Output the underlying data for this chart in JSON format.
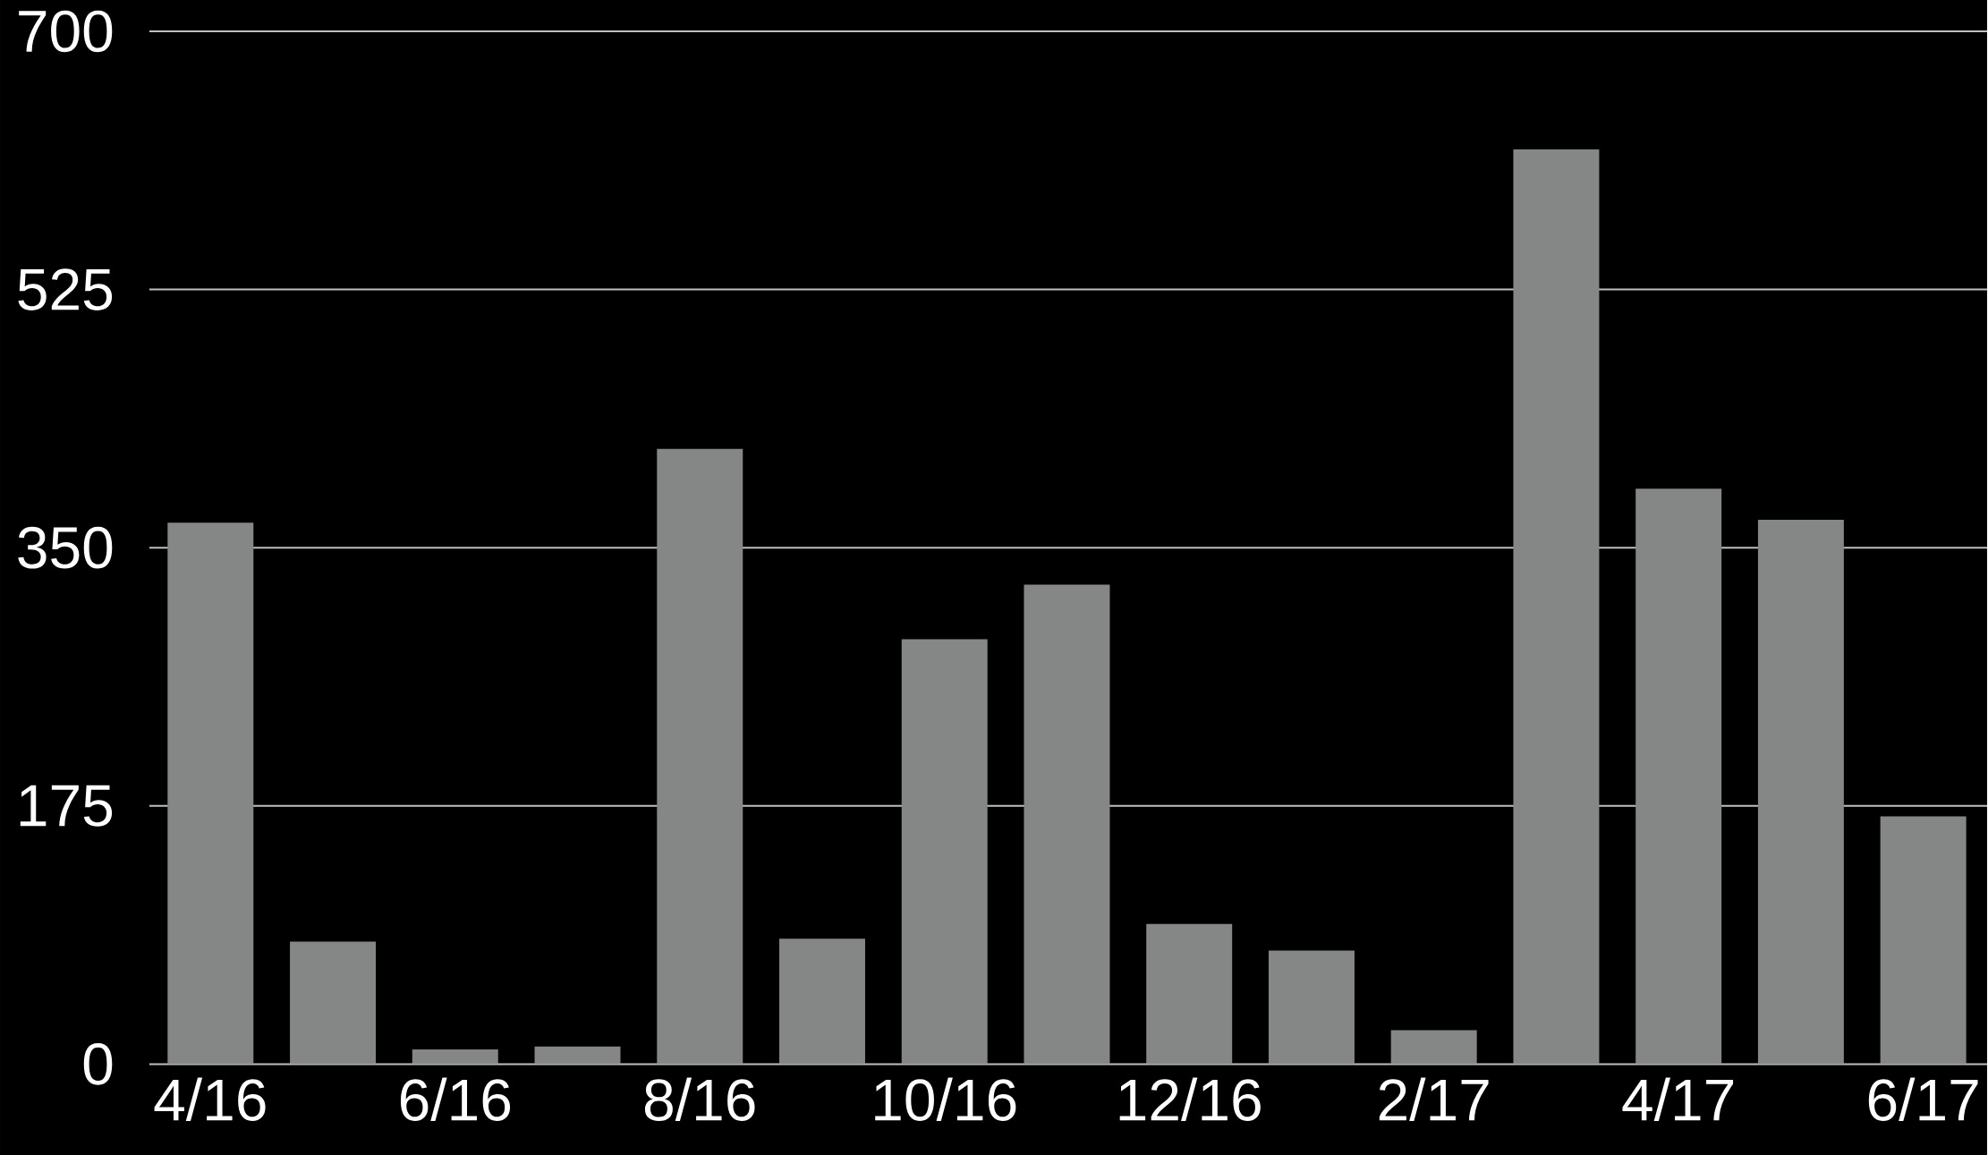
{
  "chart_data": {
    "type": "bar",
    "categories": [
      "4/16",
      null,
      "6/16",
      null,
      "8/16",
      null,
      "10/16",
      null,
      "12/16",
      null,
      "2/17",
      null,
      "4/17",
      null,
      "6/17"
    ],
    "values": [
      367,
      83,
      10,
      12,
      417,
      85,
      288,
      325,
      95,
      77,
      23,
      620,
      390,
      369,
      168
    ],
    "color": "#858786",
    "ylim": [
      0,
      700
    ],
    "yticks": [
      0,
      175,
      350,
      525,
      700
    ],
    "grid": "y"
  }
}
